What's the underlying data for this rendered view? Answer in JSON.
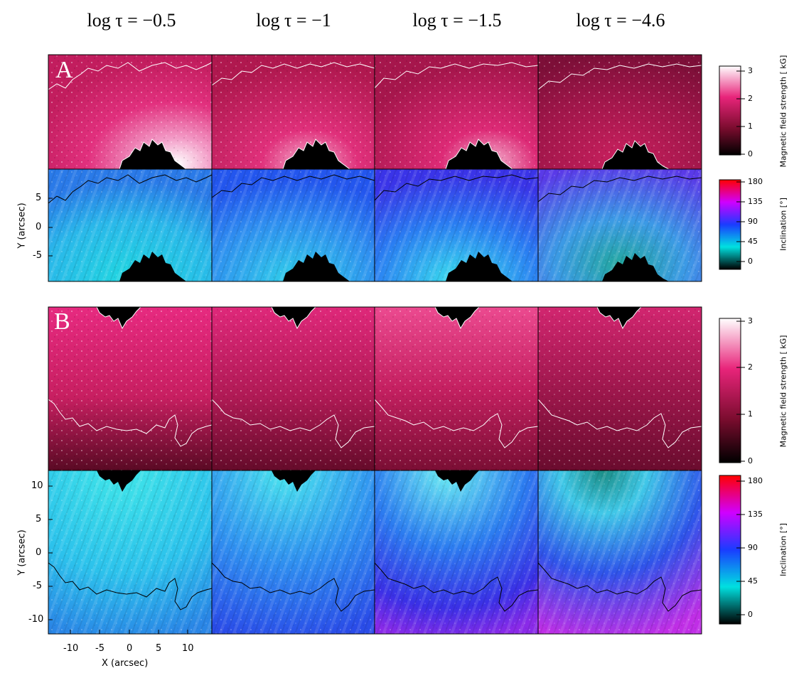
{
  "column_titles": [
    "log τ = −0.5",
    "log τ = −1",
    "log τ = −1.5",
    "log τ = −4.6"
  ],
  "panel_labels": [
    "A",
    "B"
  ],
  "axes": {
    "y_title": "Y (arcsec)",
    "x_title": "X (arcsec)",
    "panelA_yticks": [
      "5",
      "0",
      "-5"
    ],
    "panelB_yticks": [
      "10",
      "5",
      "0",
      "-5",
      "-10"
    ],
    "xticks": [
      "-10",
      "-5",
      "0",
      "5",
      "10"
    ]
  },
  "colorbars": {
    "field": {
      "label": "Magnetic field strength [ kG]",
      "ticks": [
        "3",
        "2",
        "1",
        "0"
      ]
    },
    "incl": {
      "label": "Inclination [°]",
      "ticks": [
        "180",
        "135",
        "90",
        "45",
        "0"
      ]
    }
  },
  "colors": {
    "field_low": "#000000",
    "field_mid": "#7a0c2e",
    "field_high": "#e8247a",
    "field_max": "#ffffff",
    "incl_0": "#000000",
    "incl_45": "#00e0e0",
    "incl_90": "#1a3cff",
    "incl_135": "#d000ff",
    "incl_180": "#ff0000",
    "umbra": "#000000",
    "contour_field": "#ffffff",
    "contour_incl": "#000000"
  }
}
